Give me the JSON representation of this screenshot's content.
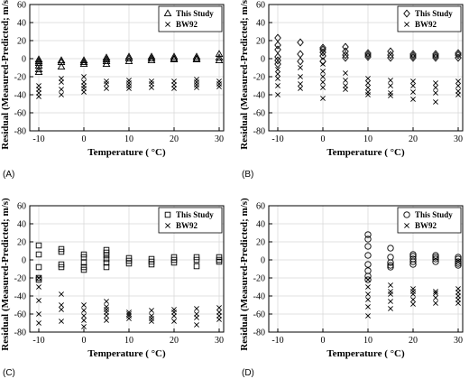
{
  "chart_data": [
    {
      "panel_label": "(A)",
      "type": "scatter",
      "xlabel": "Temperature ( °C)",
      "ylabel": "Residual (Measured-Predicted; m/s)",
      "xlim": [
        -12,
        31
      ],
      "ylim": [
        -80,
        60
      ],
      "xticks": [
        "-10",
        "0",
        "10",
        "20",
        "30"
      ],
      "yticks": [
        "60",
        "40",
        "20",
        "0",
        "-20",
        "-40",
        "-60",
        "-80"
      ],
      "legend_position": "top-right",
      "series": [
        {
          "name": "This Study",
          "marker": "triangle",
          "x": [
            -10,
            -10,
            -10,
            -10,
            -10,
            -10,
            -5,
            -5,
            -5,
            0,
            0,
            0,
            5,
            5,
            5,
            5,
            10,
            10,
            10,
            15,
            15,
            15,
            20,
            20,
            20,
            25,
            25,
            25,
            30,
            30,
            30
          ],
          "y": [
            -1,
            -3,
            -5,
            -8,
            -12,
            -15,
            -2,
            -4,
            -9,
            -2,
            -4,
            -6,
            1,
            -1,
            -3,
            -6,
            2,
            0,
            -3,
            2,
            0,
            -2,
            2,
            0,
            -1,
            2,
            0,
            -1,
            5,
            1,
            -2
          ]
        },
        {
          "name": "BW92",
          "marker": "x",
          "x": [
            -10,
            -10,
            -10,
            -10,
            -5,
            -5,
            -5,
            -5,
            0,
            0,
            0,
            0,
            0,
            5,
            5,
            5,
            10,
            10,
            10,
            10,
            15,
            15,
            15,
            20,
            20,
            20,
            25,
            25,
            25,
            25,
            30,
            30,
            30
          ],
          "y": [
            -30,
            -34,
            -38,
            -42,
            -22,
            -26,
            -34,
            -40,
            -20,
            -26,
            -30,
            -33,
            -37,
            -25,
            -28,
            -33,
            -24,
            -27,
            -30,
            -33,
            -25,
            -28,
            -32,
            -25,
            -29,
            -33,
            -23,
            -26,
            -29,
            -32,
            -25,
            -28,
            -31
          ]
        }
      ]
    },
    {
      "panel_label": "(B)",
      "type": "scatter",
      "xlabel": "Temperature ( °C)",
      "ylabel": "Residual (Measured-Predicted; m/s)",
      "xlim": [
        -12,
        31
      ],
      "ylim": [
        -80,
        60
      ],
      "xticks": [
        "-10",
        "0",
        "10",
        "20",
        "30"
      ],
      "yticks": [
        "60",
        "40",
        "20",
        "0",
        "-20",
        "-40",
        "-60",
        "-80"
      ],
      "legend_position": "top-right",
      "series": [
        {
          "name": "This Study",
          "marker": "diamond",
          "x": [
            -10,
            -10,
            -10,
            -10,
            -10,
            -10,
            -5,
            -5,
            -5,
            0,
            0,
            0,
            0,
            0,
            5,
            5,
            5,
            5,
            10,
            10,
            10,
            15,
            15,
            15,
            20,
            20,
            20,
            25,
            25,
            25,
            30,
            30,
            30
          ],
          "y": [
            23,
            15,
            10,
            2,
            -2,
            -6,
            18,
            5,
            -3,
            12,
            10,
            7,
            3,
            -3,
            13,
            8,
            4,
            1,
            6,
            4,
            2,
            8,
            4,
            1,
            5,
            3,
            1,
            5,
            3,
            1,
            6,
            4,
            1
          ]
        },
        {
          "name": "BW92",
          "marker": "x",
          "x": [
            -10,
            -10,
            -10,
            -10,
            -10,
            -5,
            -5,
            -5,
            -5,
            0,
            0,
            0,
            0,
            0,
            0,
            5,
            5,
            5,
            5,
            10,
            10,
            10,
            10,
            10,
            15,
            15,
            15,
            15,
            20,
            20,
            20,
            20,
            25,
            25,
            25,
            25,
            30,
            30,
            30,
            30
          ],
          "y": [
            -12,
            -17,
            -22,
            -30,
            -40,
            -10,
            -20,
            -28,
            -33,
            -6,
            -14,
            -20,
            -26,
            -32,
            -44,
            -16,
            -24,
            -30,
            -34,
            -22,
            -27,
            -32,
            -37,
            -40,
            -24,
            -30,
            -38,
            -41,
            -25,
            -30,
            -37,
            -45,
            -27,
            -32,
            -38,
            -48,
            -25,
            -30,
            -36,
            -40
          ]
        }
      ]
    },
    {
      "panel_label": "(C)",
      "type": "scatter",
      "xlabel": "Temperature ( °C)",
      "ylabel": "Residual (Measured-Predicted; m/s)",
      "xlim": [
        -12,
        31
      ],
      "ylim": [
        -80,
        60
      ],
      "xticks": [
        "-10",
        "0",
        "10",
        "20",
        "30"
      ],
      "yticks": [
        "60",
        "40",
        "20",
        "0",
        "-20",
        "-40",
        "-60",
        "-80"
      ],
      "legend_position": "top-right",
      "series": [
        {
          "name": "This Study",
          "marker": "square",
          "x": [
            -10,
            -10,
            -10,
            -10,
            -10,
            -5,
            -5,
            -5,
            -5,
            0,
            0,
            0,
            0,
            0,
            5,
            5,
            5,
            5,
            5,
            5,
            10,
            10,
            10,
            15,
            15,
            15,
            20,
            20,
            20,
            25,
            25,
            25,
            30,
            30,
            30
          ],
          "y": [
            16,
            6,
            -8,
            -20,
            -22,
            12,
            9,
            -5,
            -8,
            6,
            3,
            -3,
            -8,
            -11,
            11,
            8,
            5,
            1,
            -3,
            -8,
            2,
            -1,
            -4,
            1,
            -2,
            -5,
            3,
            0,
            -3,
            3,
            0,
            -7,
            3,
            0,
            -2
          ]
        },
        {
          "name": "BW92",
          "marker": "x",
          "x": [
            -10,
            -10,
            -10,
            -10,
            -10,
            -5,
            -5,
            -5,
            -5,
            0,
            0,
            0,
            0,
            0,
            5,
            5,
            5,
            5,
            5,
            5,
            10,
            10,
            10,
            10,
            15,
            15,
            15,
            15,
            20,
            20,
            20,
            20,
            25,
            25,
            25,
            25,
            30,
            30,
            30,
            30
          ],
          "y": [
            -20,
            -30,
            -45,
            -60,
            -70,
            -38,
            -50,
            -55,
            -68,
            -50,
            -56,
            -62,
            -67,
            -74,
            -46,
            -52,
            -55,
            -58,
            -62,
            -67,
            -58,
            -60,
            -62,
            -65,
            -56,
            -62,
            -65,
            -68,
            -55,
            -58,
            -62,
            -68,
            -54,
            -60,
            -64,
            -72,
            -53,
            -58,
            -62,
            -66
          ]
        }
      ]
    },
    {
      "panel_label": "(D)",
      "type": "scatter",
      "xlabel": "Temperature ( °C)",
      "ylabel": "Residual (Measured-Predicted; m/s)",
      "xlim": [
        -12,
        31
      ],
      "ylim": [
        -80,
        60
      ],
      "xticks": [
        "-10",
        "0",
        "10",
        "20",
        "30"
      ],
      "yticks": [
        "60",
        "40",
        "20",
        "0",
        "-20",
        "-40",
        "-60",
        "-80"
      ],
      "legend_position": "top-right",
      "series": [
        {
          "name": "This Study",
          "marker": "circle",
          "x": [
            10,
            10,
            10,
            10,
            10,
            10,
            10,
            10,
            15,
            15,
            15,
            15,
            15,
            20,
            20,
            20,
            20,
            20,
            25,
            25,
            25,
            25,
            30,
            30,
            30,
            30,
            30
          ],
          "y": [
            28,
            23,
            15,
            5,
            -5,
            -12,
            -18,
            -22,
            13,
            3,
            -3,
            -6,
            -8,
            6,
            4,
            1,
            -2,
            -5,
            5,
            3,
            1,
            -2,
            3,
            1,
            -2,
            -4,
            -6
          ]
        },
        {
          "name": "BW92",
          "marker": "x",
          "x": [
            10,
            10,
            10,
            10,
            10,
            10,
            15,
            15,
            15,
            15,
            15,
            20,
            20,
            20,
            20,
            20,
            25,
            25,
            25,
            25,
            30,
            30,
            30,
            30,
            30
          ],
          "y": [
            -22,
            -30,
            -38,
            -44,
            -52,
            -62,
            -28,
            -35,
            -38,
            -46,
            -54,
            -32,
            -35,
            -38,
            -44,
            -49,
            -35,
            -37,
            -42,
            -48,
            -32,
            -36,
            -40,
            -44,
            -48
          ]
        }
      ]
    }
  ]
}
